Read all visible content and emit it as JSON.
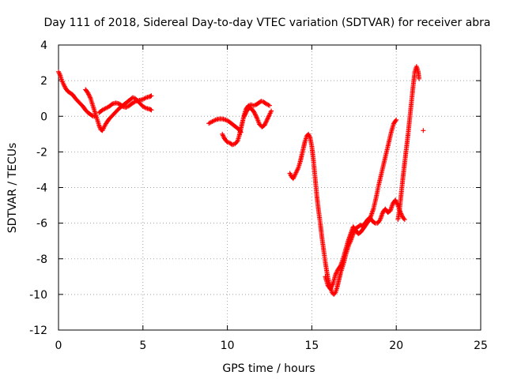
{
  "chart_data": {
    "type": "scatter",
    "title": "Day 111 of 2018, Sidereal Day-to-day VTEC variation (SDTVAR) for receiver abra",
    "xlabel": "GPS time / hours",
    "ylabel": "SDTVAR / TECUs",
    "xlim": [
      0,
      25
    ],
    "ylim": [
      -12,
      4
    ],
    "xticks": [
      0,
      5,
      10,
      15,
      20,
      25
    ],
    "yticks": [
      -12,
      -10,
      -8,
      -6,
      -4,
      -2,
      0,
      2,
      4
    ],
    "grid": true,
    "marker": "+",
    "series": [
      {
        "name": "SDTVAR",
        "color": "#ff0000",
        "segments": [
          [
            [
              0.0,
              2.5
            ],
            [
              0.1,
              2.3
            ],
            [
              0.2,
              2.0
            ],
            [
              0.3,
              1.8
            ],
            [
              0.4,
              1.6
            ],
            [
              0.55,
              1.4
            ],
            [
              0.7,
              1.3
            ],
            [
              0.85,
              1.2
            ],
            [
              1.0,
              1.0
            ],
            [
              1.15,
              0.85
            ],
            [
              1.3,
              0.7
            ],
            [
              1.45,
              0.55
            ],
            [
              1.6,
              0.35
            ],
            [
              1.75,
              0.2
            ],
            [
              1.9,
              0.1
            ],
            [
              2.05,
              0.0
            ],
            [
              2.2,
              0.0
            ]
          ],
          [
            [
              1.6,
              1.5
            ],
            [
              1.75,
              1.3
            ],
            [
              1.9,
              1.0
            ],
            [
              2.0,
              0.7
            ],
            [
              2.1,
              0.4
            ],
            [
              2.2,
              0.1
            ],
            [
              2.3,
              -0.2
            ],
            [
              2.4,
              -0.5
            ],
            [
              2.5,
              -0.75
            ],
            [
              2.6,
              -0.8
            ],
            [
              2.7,
              -0.6
            ],
            [
              2.85,
              -0.35
            ],
            [
              3.0,
              -0.15
            ],
            [
              3.2,
              0.05
            ],
            [
              3.4,
              0.25
            ],
            [
              3.6,
              0.45
            ],
            [
              3.8,
              0.6
            ],
            [
              4.0,
              0.75
            ],
            [
              4.2,
              0.9
            ],
            [
              4.4,
              1.05
            ],
            [
              4.55,
              1.0
            ],
            [
              4.7,
              0.85
            ],
            [
              4.85,
              0.7
            ],
            [
              5.0,
              0.55
            ],
            [
              5.2,
              0.45
            ],
            [
              5.4,
              0.4
            ],
            [
              5.5,
              0.35
            ]
          ],
          [
            [
              2.4,
              0.2
            ],
            [
              2.6,
              0.35
            ],
            [
              2.8,
              0.45
            ],
            [
              3.0,
              0.55
            ],
            [
              3.2,
              0.7
            ],
            [
              3.4,
              0.75
            ],
            [
              3.6,
              0.7
            ],
            [
              3.8,
              0.55
            ],
            [
              4.0,
              0.5
            ],
            [
              4.2,
              0.6
            ],
            [
              4.4,
              0.75
            ],
            [
              4.6,
              0.85
            ],
            [
              4.8,
              0.9
            ],
            [
              5.0,
              0.95
            ],
            [
              5.2,
              1.05
            ],
            [
              5.4,
              1.1
            ],
            [
              5.5,
              1.15
            ]
          ],
          [
            [
              8.9,
              -0.4
            ],
            [
              9.1,
              -0.3
            ],
            [
              9.3,
              -0.2
            ],
            [
              9.5,
              -0.15
            ],
            [
              9.7,
              -0.15
            ],
            [
              9.9,
              -0.2
            ],
            [
              10.1,
              -0.3
            ],
            [
              10.3,
              -0.45
            ],
            [
              10.5,
              -0.6
            ],
            [
              10.7,
              -0.75
            ],
            [
              10.8,
              -0.9
            ]
          ],
          [
            [
              9.7,
              -1.0
            ],
            [
              9.8,
              -1.2
            ],
            [
              9.9,
              -1.35
            ],
            [
              10.0,
              -1.45
            ],
            [
              10.15,
              -1.5
            ],
            [
              10.3,
              -1.6
            ],
            [
              10.45,
              -1.55
            ],
            [
              10.6,
              -1.4
            ],
            [
              10.7,
              -1.1
            ],
            [
              10.8,
              -0.7
            ],
            [
              10.9,
              -0.3
            ],
            [
              11.0,
              0.1
            ],
            [
              11.1,
              0.4
            ],
            [
              11.25,
              0.6
            ],
            [
              11.4,
              0.65
            ],
            [
              11.55,
              0.6
            ],
            [
              11.7,
              0.65
            ],
            [
              11.85,
              0.75
            ],
            [
              12.0,
              0.85
            ],
            [
              12.15,
              0.8
            ],
            [
              12.3,
              0.7
            ],
            [
              12.5,
              0.6
            ]
          ],
          [
            [
              11.0,
              0.0
            ],
            [
              11.15,
              0.3
            ],
            [
              11.3,
              0.5
            ],
            [
              11.45,
              0.4
            ],
            [
              11.6,
              0.2
            ],
            [
              11.75,
              -0.1
            ],
            [
              11.9,
              -0.45
            ],
            [
              12.05,
              -0.6
            ],
            [
              12.2,
              -0.5
            ],
            [
              12.35,
              -0.2
            ],
            [
              12.5,
              0.1
            ],
            [
              12.6,
              0.3
            ]
          ],
          [
            [
              13.7,
              -3.2
            ],
            [
              13.8,
              -3.4
            ],
            [
              13.9,
              -3.5
            ],
            [
              14.0,
              -3.3
            ],
            [
              14.1,
              -3.1
            ],
            [
              14.2,
              -2.9
            ],
            [
              14.3,
              -2.6
            ],
            [
              14.4,
              -2.2
            ],
            [
              14.5,
              -1.8
            ],
            [
              14.6,
              -1.4
            ],
            [
              14.7,
              -1.1
            ],
            [
              14.8,
              -1.0
            ],
            [
              14.9,
              -1.2
            ],
            [
              15.0,
              -1.7
            ],
            [
              15.1,
              -2.5
            ],
            [
              15.2,
              -3.5
            ],
            [
              15.3,
              -4.5
            ],
            [
              15.4,
              -5.3
            ],
            [
              15.5,
              -6.0
            ],
            [
              15.6,
              -6.8
            ],
            [
              15.7,
              -7.5
            ],
            [
              15.8,
              -8.2
            ],
            [
              15.9,
              -8.8
            ],
            [
              16.0,
              -9.3
            ],
            [
              16.1,
              -9.6
            ],
            [
              16.2,
              -9.9
            ],
            [
              16.3,
              -10.0
            ],
            [
              16.4,
              -9.9
            ],
            [
              16.5,
              -9.6
            ],
            [
              16.6,
              -9.2
            ],
            [
              16.7,
              -8.8
            ],
            [
              16.8,
              -8.5
            ],
            [
              16.9,
              -8.2
            ],
            [
              17.0,
              -7.8
            ],
            [
              17.1,
              -7.5
            ],
            [
              17.2,
              -7.2
            ],
            [
              17.3,
              -7.0
            ],
            [
              17.45,
              -6.6
            ],
            [
              17.6,
              -6.3
            ],
            [
              17.75,
              -6.2
            ],
            [
              17.9,
              -6.1
            ],
            [
              18.0,
              -6.2
            ],
            [
              18.15,
              -6.0
            ],
            [
              18.3,
              -5.8
            ],
            [
              18.45,
              -5.7
            ],
            [
              18.6,
              -5.9
            ],
            [
              18.75,
              -6.0
            ],
            [
              18.9,
              -6.0
            ],
            [
              19.05,
              -5.8
            ],
            [
              19.2,
              -5.4
            ],
            [
              19.35,
              -5.2
            ],
            [
              19.5,
              -5.4
            ],
            [
              19.65,
              -5.3
            ],
            [
              19.8,
              -4.9
            ],
            [
              19.95,
              -4.7
            ],
            [
              20.1,
              -5.0
            ],
            [
              20.25,
              -5.4
            ],
            [
              20.4,
              -5.7
            ],
            [
              20.5,
              -5.8
            ]
          ],
          [
            [
              15.8,
              -9.0
            ],
            [
              15.95,
              -9.5
            ],
            [
              16.1,
              -9.7
            ],
            [
              16.25,
              -9.4
            ],
            [
              16.4,
              -8.9
            ],
            [
              16.55,
              -8.6
            ],
            [
              16.7,
              -8.4
            ],
            [
              16.85,
              -8.0
            ],
            [
              17.0,
              -7.5
            ],
            [
              17.15,
              -7.0
            ],
            [
              17.3,
              -6.6
            ],
            [
              17.45,
              -6.2
            ],
            [
              17.6,
              -6.4
            ],
            [
              17.75,
              -6.6
            ],
            [
              17.9,
              -6.5
            ],
            [
              18.05,
              -6.3
            ],
            [
              18.2,
              -6.1
            ],
            [
              18.35,
              -5.9
            ],
            [
              18.5,
              -5.6
            ],
            [
              18.65,
              -5.2
            ],
            [
              18.8,
              -4.6
            ],
            [
              18.95,
              -3.9
            ],
            [
              19.1,
              -3.3
            ],
            [
              19.25,
              -2.7
            ],
            [
              19.4,
              -2.1
            ],
            [
              19.55,
              -1.5
            ],
            [
              19.7,
              -0.9
            ],
            [
              19.85,
              -0.4
            ],
            [
              20.0,
              -0.2
            ]
          ],
          [
            [
              20.1,
              -5.8
            ],
            [
              20.2,
              -5.2
            ],
            [
              20.3,
              -4.3
            ],
            [
              20.4,
              -3.4
            ],
            [
              20.5,
              -2.6
            ],
            [
              20.6,
              -1.8
            ],
            [
              20.7,
              -1.0
            ],
            [
              20.8,
              -0.1
            ],
            [
              20.9,
              0.8
            ],
            [
              21.0,
              1.7
            ],
            [
              21.1,
              2.5
            ],
            [
              21.2,
              2.8
            ],
            [
              21.3,
              2.5
            ],
            [
              21.35,
              2.1
            ]
          ],
          [
            [
              21.6,
              -0.8
            ]
          ]
        ]
      }
    ]
  }
}
